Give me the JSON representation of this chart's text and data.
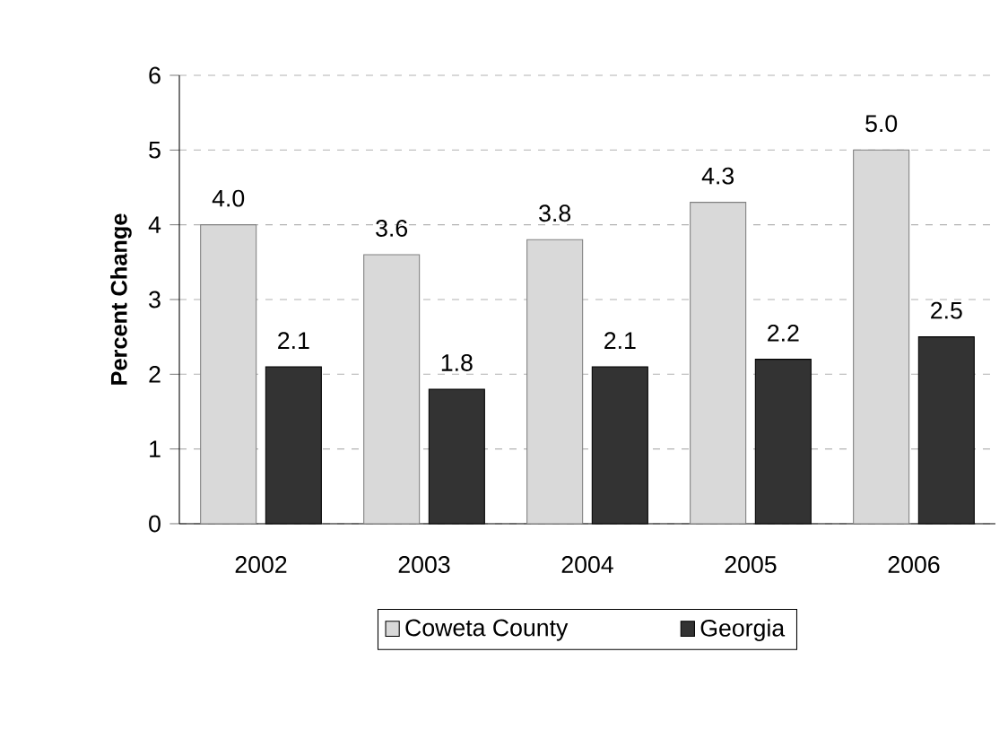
{
  "chart_data": {
    "type": "bar",
    "ylabel": "Percent Change",
    "categories": [
      "2002",
      "2003",
      "2004",
      "2005",
      "2006"
    ],
    "series": [
      {
        "name": "Coweta County",
        "color": "#d9d9d9",
        "values": [
          4.0,
          3.6,
          3.8,
          4.3,
          5.0
        ],
        "value_labels": [
          "4.0",
          "3.6",
          "3.8",
          "4.3",
          "5.0"
        ]
      },
      {
        "name": "Georgia",
        "color": "#333333",
        "values": [
          2.1,
          1.8,
          2.1,
          2.2,
          2.5
        ],
        "value_labels": [
          "2.1",
          "1.8",
          "2.1",
          "2.2",
          "2.5"
        ]
      }
    ],
    "ylim": [
      0,
      6
    ],
    "yticks": [
      0,
      1,
      2,
      3,
      4,
      5,
      6
    ],
    "grid": "y",
    "legend": "bottom"
  }
}
